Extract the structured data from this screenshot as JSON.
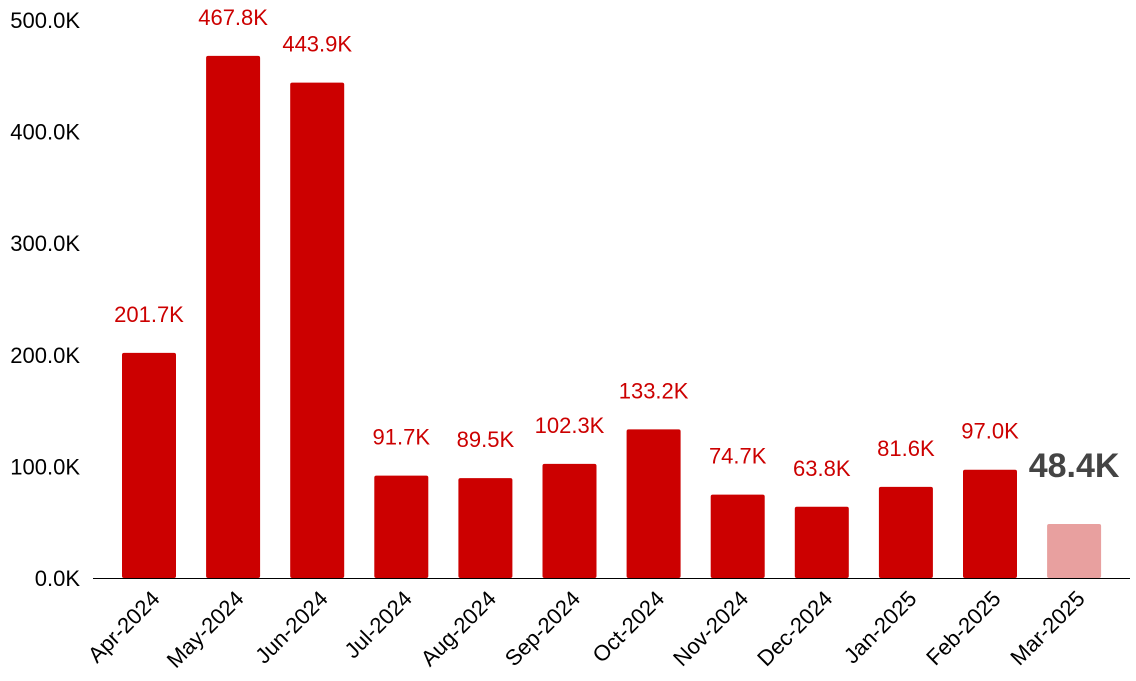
{
  "chart_data": {
    "type": "bar",
    "title": "",
    "xlabel": "",
    "ylabel": "",
    "categories": [
      "Apr-2024",
      "May-2024",
      "Jun-2024",
      "Jul-2024",
      "Aug-2024",
      "Sep-2024",
      "Oct-2024",
      "Nov-2024",
      "Dec-2024",
      "Jan-2025",
      "Feb-2025",
      "Mar-2025"
    ],
    "values": [
      201700,
      467800,
      443900,
      91700,
      89500,
      102300,
      133200,
      74700,
      63800,
      81600,
      97000,
      48400
    ],
    "data_labels": [
      "201.7K",
      "467.8K",
      "443.9K",
      "91.7K",
      "89.5K",
      "102.3K",
      "133.2K",
      "74.7K",
      "63.8K",
      "81.6K",
      "97.0K",
      "48.4K"
    ],
    "y_ticks": [
      0,
      100000,
      200000,
      300000,
      400000,
      500000
    ],
    "y_tick_labels": [
      "0.0K",
      "100.0K",
      "200.0K",
      "300.0K",
      "400.0K",
      "500.0K"
    ],
    "ylim": [
      0,
      500000
    ],
    "grid": false,
    "legend": "none",
    "highlighted_category": "Mar-2025",
    "colors": {
      "bar": "#cc0000",
      "bar_highlight": "#e8a09f",
      "data_label": "#cc0000",
      "data_label_highlight": "#444444",
      "axis": "#000000"
    }
  }
}
